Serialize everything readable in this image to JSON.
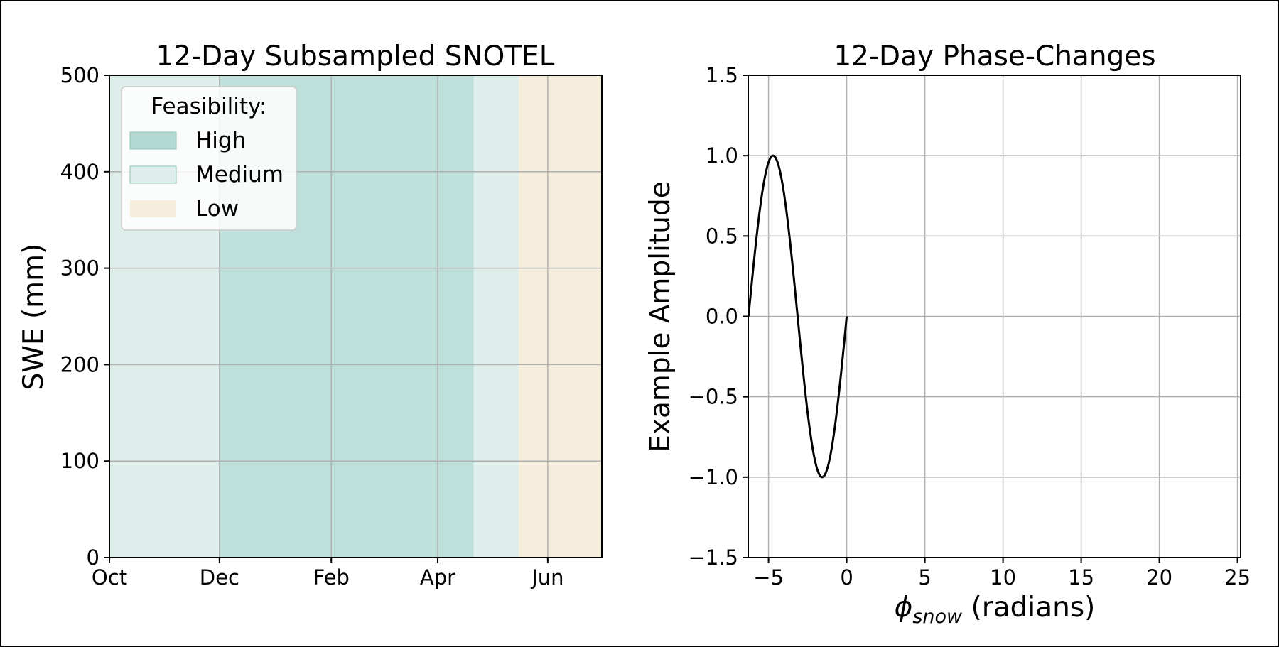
{
  "chart_data": [
    {
      "type": "area",
      "title": "12-Day Subsampled SNOTEL",
      "xlabel": "",
      "ylabel": "SWE (mm)",
      "ylim": [
        0,
        500
      ],
      "xlim_days_since_oct1": [
        0,
        273
      ],
      "yticks": [
        "0",
        "100",
        "200",
        "300",
        "400",
        "500"
      ],
      "xticks": [
        {
          "label": "Oct",
          "day": 0
        },
        {
          "label": "Dec",
          "day": 61
        },
        {
          "label": "Feb",
          "day": 123
        },
        {
          "label": "Apr",
          "day": 182
        },
        {
          "label": "Jun",
          "day": 243
        }
      ],
      "grid": true,
      "legend": {
        "title": "Feasibility:",
        "position": "upper-left",
        "entries": [
          {
            "label": "High",
            "color": "#b3d9d2"
          },
          {
            "label": "Medium",
            "color": "#deeeeb"
          },
          {
            "label": "Low",
            "color": "#f5eedd"
          }
        ]
      },
      "bands": [
        {
          "level": "Medium",
          "start_day": 0,
          "end_day": 61,
          "color": "#deeeeb"
        },
        {
          "level": "High",
          "start_day": 61,
          "end_day": 202,
          "color": "#bfe0da"
        },
        {
          "level": "Medium",
          "start_day": 202,
          "end_day": 227,
          "color": "#deeeeb"
        },
        {
          "level": "Low",
          "start_day": 227,
          "end_day": 273,
          "color": "#f5eedd"
        }
      ]
    },
    {
      "type": "line",
      "title": "12-Day Phase-Changes",
      "xlabel": "ϕ",
      "xlabel_subscript": "snow",
      "xlabel_suffix": " (radians)",
      "ylabel": "Example Amplitude",
      "xlim": [
        -6.3,
        25.2
      ],
      "ylim": [
        -1.5,
        1.5
      ],
      "xticks": [
        {
          "label": "−5",
          "value": -5
        },
        {
          "label": "0",
          "value": 0
        },
        {
          "label": "5",
          "value": 5
        },
        {
          "label": "10",
          "value": 10
        },
        {
          "label": "15",
          "value": 15
        },
        {
          "label": "20",
          "value": 20
        },
        {
          "label": "25",
          "value": 25
        }
      ],
      "yticks": [
        {
          "label": "1.5",
          "value": 1.5
        },
        {
          "label": "1.0",
          "value": 1.0
        },
        {
          "label": "0.5",
          "value": 0.5
        },
        {
          "label": "0.0",
          "value": 0.0
        },
        {
          "label": "−0.5",
          "value": -0.5
        },
        {
          "label": "−1.0",
          "value": -1.0
        },
        {
          "label": "−1.5",
          "value": -1.5
        }
      ],
      "grid": true,
      "series": [
        {
          "name": "sin(phi)",
          "function": "sin",
          "x_start": -6.283,
          "x_end": 0,
          "color": "#000000"
        }
      ]
    }
  ]
}
